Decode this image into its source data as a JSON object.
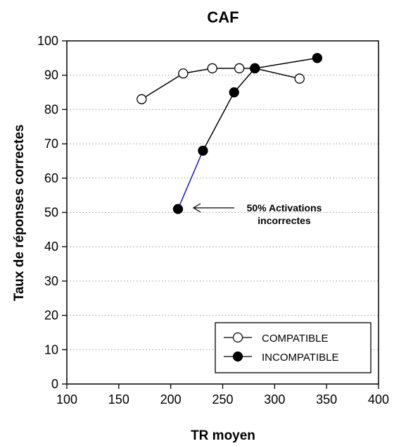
{
  "chart_data": {
    "type": "line",
    "title": "CAF",
    "xlabel": "TR moyen",
    "ylabel": "Taux de réponses correctes",
    "xlim": [
      100,
      400
    ],
    "ylim": [
      0,
      100
    ],
    "xticks": [
      100,
      150,
      200,
      250,
      300,
      350,
      400
    ],
    "yticks": [
      0,
      10,
      20,
      30,
      40,
      50,
      60,
      70,
      80,
      90,
      100
    ],
    "grid": "horizontal dotted",
    "legend_position": "bottom-right",
    "series": [
      {
        "name": "COMPATIBLE",
        "marker": "open-circle",
        "color": "#000000",
        "x": [
          172,
          212,
          240,
          266,
          281,
          324
        ],
        "y": [
          83,
          90.5,
          92,
          92,
          92,
          89
        ]
      },
      {
        "name": "INCOMPATIBLE",
        "marker": "filled-circle",
        "color": "#000000",
        "highlight_segment_color": "#1a1ad6",
        "x": [
          207,
          231,
          261,
          281,
          341
        ],
        "y": [
          51,
          68,
          85,
          92,
          95
        ]
      }
    ],
    "annotation": {
      "text_line1": "50% Activations",
      "text_line2": "incorrectes",
      "points_to": {
        "x": 207,
        "y": 51
      }
    }
  }
}
